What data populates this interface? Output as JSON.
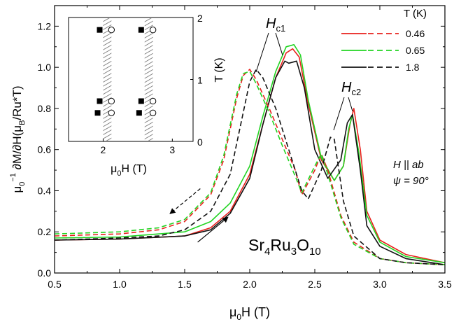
{
  "chart_data": {
    "type": "line",
    "xlabel": {
      "prefix": "μ",
      "sub": "0",
      "rest": "H (T)"
    },
    "ylabel": {
      "p1": "μ",
      "sub0": "0",
      "sup1": "−1",
      "p2": " ∂M/∂H(μ",
      "subB": "B",
      "p3": "/Ru*T)"
    },
    "xlim": [
      0.5,
      3.5
    ],
    "ylim": [
      0.0,
      1.3
    ],
    "xticks": [
      "0.5",
      "1.0",
      "1.5",
      "2.0",
      "2.5",
      "3.0",
      "3.5"
    ],
    "yticks": [
      "0.0",
      "0.2",
      "0.4",
      "0.6",
      "0.8",
      "1.0",
      "1.2"
    ],
    "xtick_values": [
      0.5,
      1.0,
      1.5,
      2.0,
      2.5,
      3.0,
      3.5
    ],
    "ytick_values": [
      0.0,
      0.2,
      0.4,
      0.6,
      0.8,
      1.0,
      1.2
    ],
    "legend": {
      "title": "T (K)",
      "position": "top-right",
      "entries": [
        "0.46",
        "0.65",
        "1.8"
      ]
    },
    "annotations": {
      "hc1": {
        "main": "H",
        "sub": "c1"
      },
      "hc2": {
        "main": "H",
        "sub": "c2"
      },
      "field_dir": {
        "main": "H || ",
        "ital": "ab"
      },
      "angle": {
        "main": "ψ = 90°"
      },
      "compound": {
        "main": "Sr",
        "s1": "4",
        "mid": "Ru",
        "s2": "3",
        "end": "O",
        "s3": "10"
      }
    },
    "series": [
      {
        "name": "0.46",
        "color": "#e8211c",
        "dash": "solid",
        "sweep": "up",
        "x": [
          0.5,
          1.0,
          1.5,
          1.7,
          1.85,
          2.0,
          2.1,
          2.2,
          2.28,
          2.33,
          2.38,
          2.45,
          2.55,
          2.65,
          2.72,
          2.77,
          2.8,
          2.85,
          2.9,
          3.0,
          3.2,
          3.5
        ],
        "y": [
          0.16,
          0.165,
          0.18,
          0.22,
          0.3,
          0.48,
          0.72,
          0.95,
          1.07,
          1.09,
          1.05,
          0.82,
          0.55,
          0.45,
          0.52,
          0.72,
          0.8,
          0.6,
          0.3,
          0.16,
          0.09,
          0.05
        ]
      },
      {
        "name": "0.65",
        "color": "#22d422",
        "dash": "solid",
        "sweep": "up",
        "x": [
          0.5,
          1.0,
          1.5,
          1.7,
          1.85,
          2.0,
          2.1,
          2.2,
          2.28,
          2.34,
          2.39,
          2.45,
          2.55,
          2.65,
          2.72,
          2.76,
          2.79,
          2.84,
          2.9,
          3.0,
          3.2,
          3.5
        ],
        "y": [
          0.17,
          0.175,
          0.2,
          0.25,
          0.34,
          0.52,
          0.76,
          0.98,
          1.1,
          1.11,
          1.06,
          0.84,
          0.56,
          0.45,
          0.52,
          0.7,
          0.77,
          0.58,
          0.28,
          0.15,
          0.08,
          0.05
        ]
      },
      {
        "name": "1.8",
        "color": "#111111",
        "dash": "solid",
        "sweep": "up",
        "x": [
          0.5,
          1.0,
          1.5,
          1.7,
          1.85,
          2.0,
          2.1,
          2.2,
          2.27,
          2.3,
          2.36,
          2.42,
          2.5,
          2.6,
          2.7,
          2.75,
          2.79,
          2.85,
          2.9,
          3.0,
          3.2,
          3.5
        ],
        "y": [
          0.16,
          0.165,
          0.18,
          0.21,
          0.29,
          0.46,
          0.72,
          0.95,
          1.03,
          1.02,
          1.03,
          0.9,
          0.6,
          0.46,
          0.55,
          0.73,
          0.77,
          0.5,
          0.23,
          0.13,
          0.07,
          0.04
        ]
      },
      {
        "name": "0.46",
        "color": "#e8211c",
        "dash": "dashed",
        "sweep": "down",
        "x": [
          0.5,
          1.0,
          1.3,
          1.5,
          1.7,
          1.8,
          1.9,
          1.95,
          2.0,
          2.05,
          2.15,
          2.25,
          2.35,
          2.4,
          2.5,
          2.55,
          2.6,
          2.7,
          2.8,
          3.0,
          3.2,
          3.5
        ],
        "y": [
          0.18,
          0.19,
          0.21,
          0.25,
          0.38,
          0.55,
          0.85,
          0.96,
          0.99,
          0.94,
          0.8,
          0.65,
          0.5,
          0.38,
          0.5,
          0.58,
          0.5,
          0.28,
          0.15,
          0.07,
          0.05,
          0.04
        ]
      },
      {
        "name": "0.65",
        "color": "#22d422",
        "dash": "dashed",
        "sweep": "down",
        "x": [
          0.5,
          1.0,
          1.3,
          1.5,
          1.7,
          1.8,
          1.9,
          1.95,
          2.0,
          2.05,
          2.15,
          2.25,
          2.35,
          2.4,
          2.5,
          2.55,
          2.6,
          2.7,
          2.8,
          3.0,
          3.2,
          3.5
        ],
        "y": [
          0.19,
          0.2,
          0.22,
          0.26,
          0.39,
          0.57,
          0.87,
          0.97,
          0.98,
          0.92,
          0.78,
          0.62,
          0.47,
          0.39,
          0.52,
          0.58,
          0.48,
          0.27,
          0.14,
          0.07,
          0.05,
          0.04
        ]
      },
      {
        "name": "1.8",
        "color": "#111111",
        "dash": "dashed",
        "sweep": "down",
        "x": [
          0.5,
          1.0,
          1.3,
          1.5,
          1.7,
          1.85,
          1.95,
          2.0,
          2.05,
          2.1,
          2.2,
          2.3,
          2.4,
          2.45,
          2.55,
          2.62,
          2.65,
          2.72,
          2.8,
          3.0,
          3.2,
          3.5
        ],
        "y": [
          0.16,
          0.17,
          0.18,
          0.21,
          0.3,
          0.48,
          0.78,
          0.93,
          0.99,
          0.95,
          0.8,
          0.6,
          0.4,
          0.36,
          0.5,
          0.66,
          0.65,
          0.35,
          0.18,
          0.07,
          0.05,
          0.04
        ]
      }
    ],
    "arrows": [
      {
        "dir": "down",
        "x1": 1.62,
        "y1": 0.41,
        "x2": 1.39,
        "y2": 0.29
      },
      {
        "dir": "up",
        "x1": 1.6,
        "y1": 0.15,
        "x2": 1.83,
        "y2": 0.27
      }
    ],
    "inset": {
      "xlabel": {
        "prefix": "μ",
        "sub": "0",
        "rest": "H (T)"
      },
      "ylabel": "T (K)",
      "xlim": [
        1.5,
        3.3
      ],
      "ylim": [
        0,
        2
      ],
      "xticks": [
        "2",
        "3"
      ],
      "xtick_values": [
        2,
        3
      ],
      "yticks": [
        "0",
        "1",
        "2"
      ],
      "ytick_values": [
        0,
        1,
        2
      ],
      "hatched_bands": [
        [
          2.0,
          2.12
        ],
        [
          2.6,
          2.72
        ]
      ],
      "filled_squares": [
        [
          1.95,
          1.8
        ],
        [
          2.55,
          1.8
        ],
        [
          1.95,
          0.65
        ],
        [
          2.55,
          0.65
        ],
        [
          1.92,
          0.46
        ],
        [
          2.52,
          0.46
        ]
      ],
      "open_circles": [
        [
          2.12,
          1.8
        ],
        [
          2.72,
          1.8
        ],
        [
          2.12,
          0.65
        ],
        [
          2.72,
          0.65
        ],
        [
          2.12,
          0.46
        ],
        [
          2.72,
          0.46
        ]
      ]
    }
  }
}
